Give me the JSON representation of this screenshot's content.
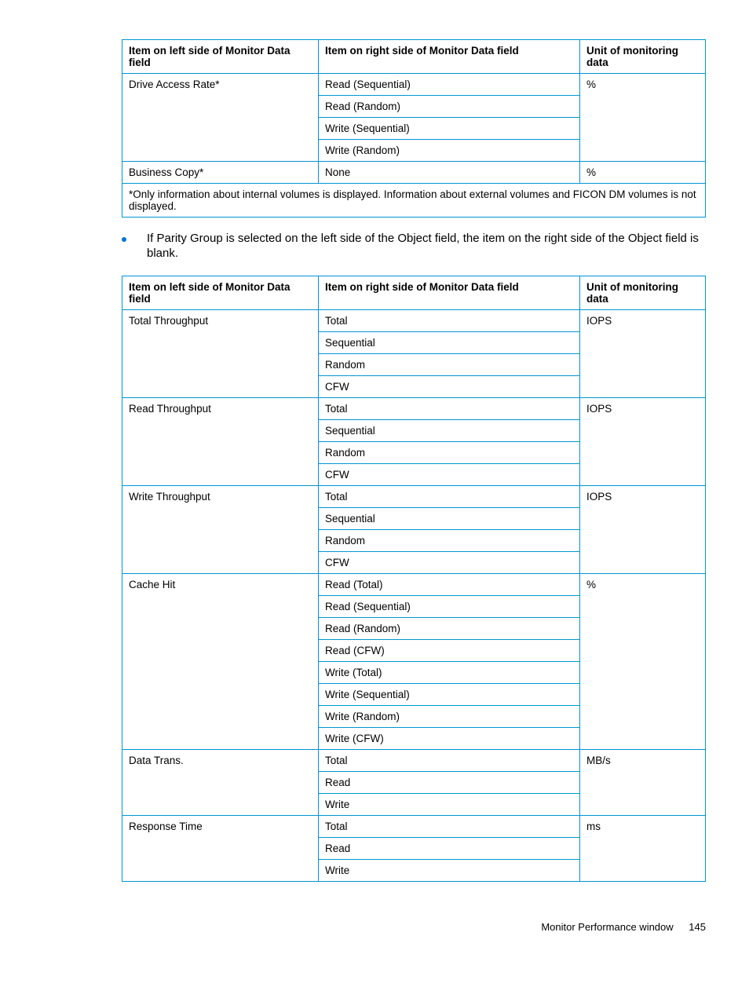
{
  "colors": {
    "border": "#0096d6",
    "bullet": "#0073cf",
    "text": "#000000",
    "background": "#ffffff"
  },
  "table1": {
    "headers": {
      "left": "Item on left side of Monitor Data field",
      "mid": "Item on right side of Monitor Data field",
      "right": "Unit of monitoring data"
    },
    "rows": [
      {
        "left": "Drive Access Rate*",
        "mids": [
          "Read (Sequential)",
          "Read (Random)",
          "Write (Sequential)",
          "Write (Random)"
        ],
        "unit": "%"
      },
      {
        "left": "Business Copy*",
        "mids": [
          "None"
        ],
        "unit": "%"
      }
    ],
    "footnote": "*Only information about internal volumes is displayed. Information about external volumes and FICON DM volumes is not displayed."
  },
  "bullet": "If Parity Group is selected on the left side of the Object field, the item on the right side of the Object field is blank.",
  "table2": {
    "headers": {
      "left": "Item on left side of Monitor Data field",
      "mid": "Item on right side of Monitor Data field",
      "right": "Unit of monitoring data"
    },
    "rows": [
      {
        "left": "Total Throughput",
        "mids": [
          "Total",
          "Sequential",
          "Random",
          "CFW"
        ],
        "unit": "IOPS"
      },
      {
        "left": "Read Throughput",
        "mids": [
          "Total",
          "Sequential",
          "Random",
          "CFW"
        ],
        "unit": "IOPS"
      },
      {
        "left": "Write Throughput",
        "mids": [
          "Total",
          "Sequential",
          "Random",
          "CFW"
        ],
        "unit": "IOPS"
      },
      {
        "left": "Cache Hit",
        "mids": [
          "Read (Total)",
          "Read (Sequential)",
          "Read (Random)",
          "Read (CFW)",
          "Write (Total)",
          "Write (Sequential)",
          "Write (Random)",
          "Write (CFW)"
        ],
        "unit": "%"
      },
      {
        "left": "Data Trans.",
        "mids": [
          "Total",
          "Read",
          "Write"
        ],
        "unit": "MB/s"
      },
      {
        "left": "Response Time",
        "mids": [
          "Total",
          "Read",
          "Write"
        ],
        "unit": "ms"
      }
    ]
  },
  "footer": {
    "title": "Monitor Performance window",
    "page": "145"
  }
}
